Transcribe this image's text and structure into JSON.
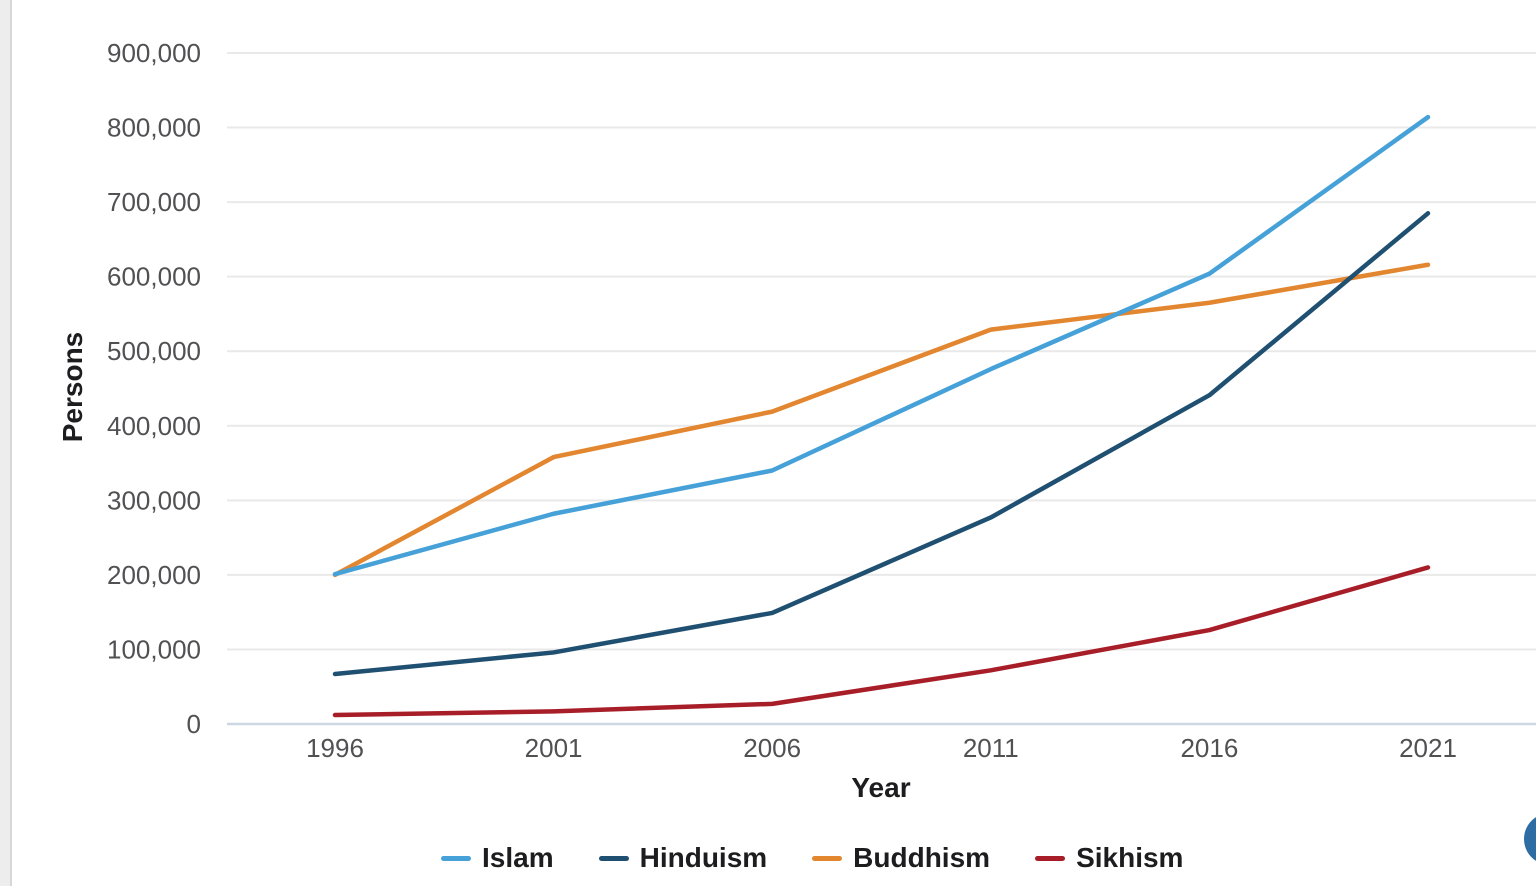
{
  "page": {
    "background": "#ffffff",
    "left_strip_color": "#ededee",
    "left_strip_border_color": "#d5d8db"
  },
  "fab": {
    "name": "floating-action-button",
    "color": "#2e6ca4"
  },
  "chart_data": {
    "type": "line",
    "title": "",
    "xlabel": "Year",
    "ylabel": "Persons",
    "x": [
      "1996",
      "2001",
      "2006",
      "2011",
      "2016",
      "2021"
    ],
    "ylim": [
      0,
      900000
    ],
    "y_ticks": [
      0,
      100000,
      200000,
      300000,
      400000,
      500000,
      600000,
      700000,
      800000,
      900000
    ],
    "y_tick_labels": [
      "0",
      "100,000",
      "200,000",
      "300,000",
      "400,000",
      "500,000",
      "600,000",
      "700,000",
      "800,000",
      "900,000"
    ],
    "grid": "horizontal",
    "legend_position": "bottom",
    "series": [
      {
        "name": "Islam",
        "color": "#45a1d8",
        "values": [
          201000,
          282000,
          340000,
          476000,
          604000,
          814000
        ]
      },
      {
        "name": "Hinduism",
        "color": "#1f5071",
        "values": [
          67000,
          96000,
          149000,
          277000,
          441000,
          685000
        ]
      },
      {
        "name": "Buddhism",
        "color": "#e2862f",
        "values": [
          200000,
          358000,
          419000,
          529000,
          565000,
          616000
        ]
      },
      {
        "name": "Sikhism",
        "color": "#a81e28",
        "values": [
          12000,
          17000,
          27000,
          72000,
          126000,
          210000
        ]
      }
    ],
    "colors": {
      "grid": "#e9e9e9",
      "zero_axis": "#ccd7e3",
      "tick_text": "#515154",
      "axis_label_text": "#1d1d1f"
    }
  }
}
